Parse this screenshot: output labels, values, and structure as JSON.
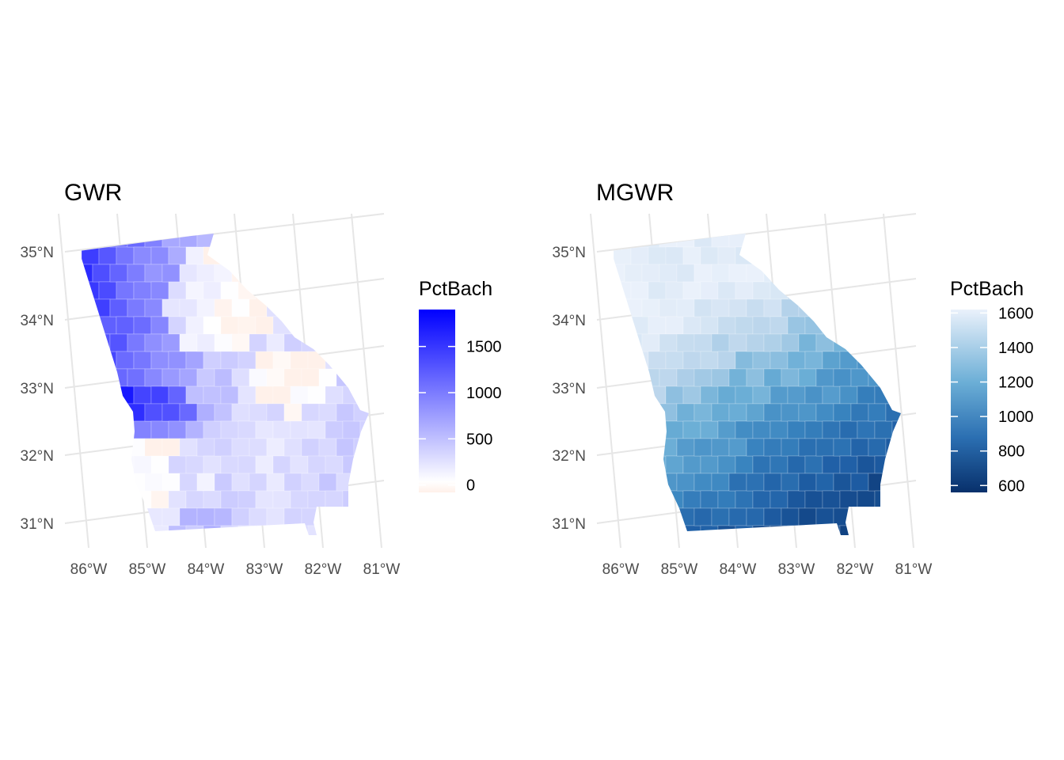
{
  "panels": [
    {
      "title": "GWR",
      "legend": {
        "title": "PctBach",
        "ticks": [
          "1500",
          "1000",
          "500",
          "0"
        ],
        "tick_values": [
          1500,
          1000,
          500,
          0
        ],
        "range": [
          -80,
          1900
        ],
        "colors": {
          "low": "#FFF1EA",
          "mid": "#FFFFFF",
          "high": "#0000FF"
        }
      },
      "lat_labels": [
        "35°N",
        "34°N",
        "33°N",
        "32°N",
        "31°N"
      ],
      "lon_labels": [
        "86°W",
        "85°W",
        "84°W",
        "83°W",
        "82°W",
        "81°W"
      ]
    },
    {
      "title": "MGWR",
      "legend": {
        "title": "PctBach",
        "ticks": [
          "1600",
          "1400",
          "1200",
          "1000",
          "800",
          "600"
        ],
        "tick_values": [
          1600,
          1400,
          1200,
          1000,
          800,
          600
        ],
        "range": [
          560,
          1620
        ],
        "colors": {
          "low": "#08306B",
          "mid": "#4A90C4",
          "high": "#EAF1FB"
        }
      },
      "lat_labels": [
        "35°N",
        "34°N",
        "33°N",
        "32°N",
        "31°N"
      ],
      "lon_labels": [
        "86°W",
        "85°W",
        "84°W",
        "83°W",
        "82°W",
        "81°W"
      ]
    }
  ]
}
